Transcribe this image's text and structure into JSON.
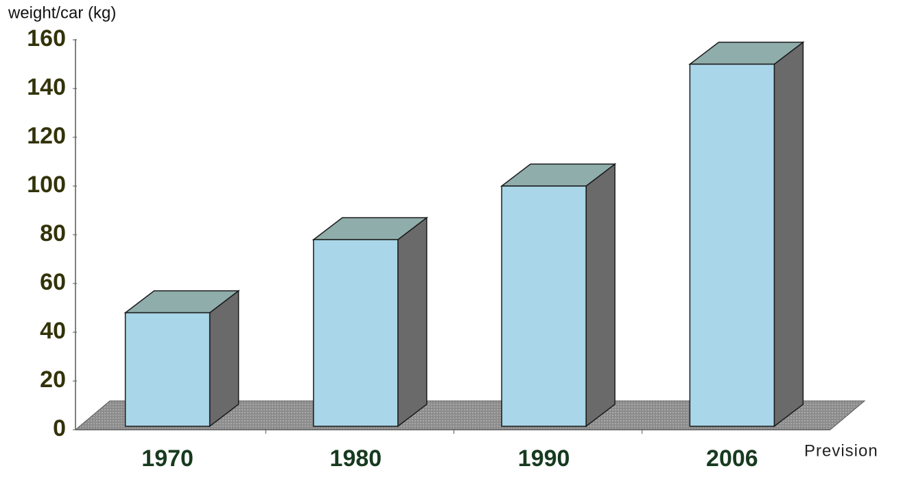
{
  "chart_data": {
    "type": "bar3d",
    "y_axis_label": "weight/car (kg)",
    "annotation": "Prevision",
    "categories": [
      "1970",
      "1980",
      "1990",
      "2006"
    ],
    "values": [
      48,
      78,
      100,
      150
    ],
    "color": "#a9d6e8",
    "ylim": [
      0,
      160
    ],
    "yticks": [
      0,
      20,
      40,
      60,
      80,
      100,
      120,
      140,
      160
    ],
    "grid": false
  }
}
